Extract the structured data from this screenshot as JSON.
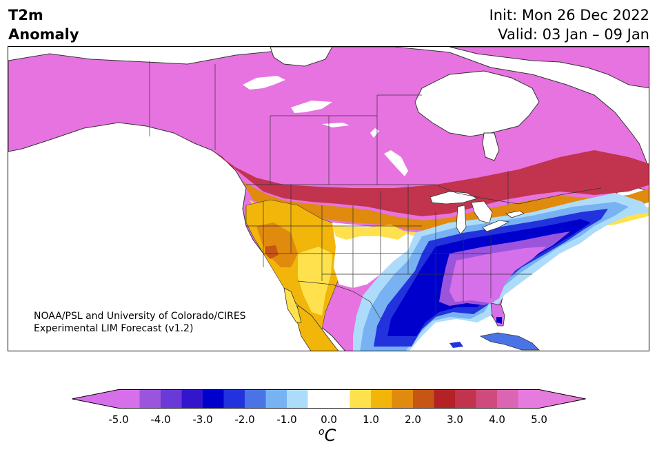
{
  "title": {
    "line1": "T2m",
    "line2": "Anomaly"
  },
  "dates": {
    "init": "Init: Mon 26 Dec 2022",
    "valid": "Valid: 03 Jan – 09 Jan"
  },
  "credit": {
    "line1": "NOAA/PSL and University of Colorado/CIRES",
    "line2": "Experimental LIM Forecast (v1.2)"
  },
  "colorbar": {
    "ticks": [
      "-5.0",
      "-4.0",
      "-3.0",
      "-2.0",
      "-1.0",
      "0.0",
      "1.0",
      "2.0",
      "3.0",
      "4.0",
      "5.0"
    ],
    "unit_sup": "o",
    "unit": "C",
    "colors": [
      "#d670ea",
      "#9b55dd",
      "#6a3ad8",
      "#3315cc",
      "#0000cc",
      "#2233dd",
      "#4a74e6",
      "#78b2f2",
      "#addcfb",
      "#ffffff",
      "#ffffff",
      "#ffe14d",
      "#f2b50a",
      "#e08a0e",
      "#c75513",
      "#b52225",
      "#c2334d",
      "#cf4b7d",
      "#db64b3",
      "#e57bdc"
    ],
    "under_color": "#d670ea",
    "over_color": "#e57bdc"
  },
  "palette": {
    "strong_cold": "#e673e0",
    "deep_blue": "#0000cc",
    "mid_blue": "#2233dd",
    "light_blue": "#78b2f2",
    "pale_blue": "#addcfb",
    "yellow": "#ffe14d",
    "gold": "#f2b50a",
    "orange": "#e08a0e",
    "dark_orange": "#c75513",
    "red": "#b52225",
    "purple": "#9b55dd"
  }
}
